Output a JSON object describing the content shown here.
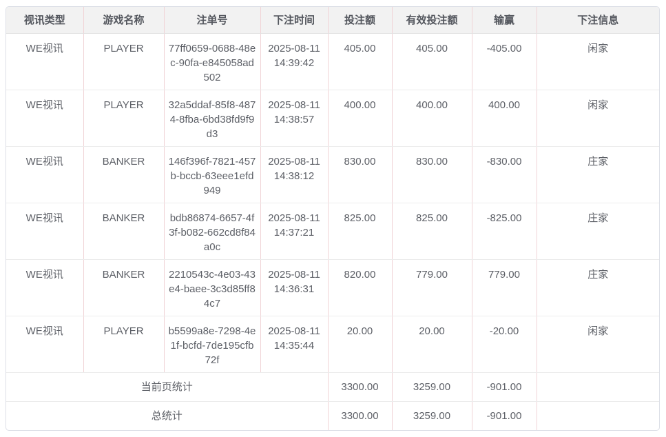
{
  "colors": {
    "header_bg": "#f2f2f2",
    "outer_border": "#dcdfe6",
    "vertical_divider": "#f0d3d6",
    "horizontal_divider": "#ececec",
    "text": "#5c5f66"
  },
  "table": {
    "columns": {
      "video_type": "视讯类型",
      "game_name": "游戏名称",
      "bet_id": "注单号",
      "bet_time": "下注时间",
      "bet_amount": "投注额",
      "valid_bet_amount": "有效投注额",
      "win_loss": "输赢",
      "bet_info": "下注信息"
    },
    "rows": [
      {
        "video_type": "WE视讯",
        "game_name": "PLAYER",
        "bet_id": "77ff0659-0688-48ec-90fa-e845058ad502",
        "bet_time": "2025-08-11 14:39:42",
        "bet_amount": "405.00",
        "valid_bet_amount": "405.00",
        "win_loss": "-405.00",
        "bet_info": "闲家"
      },
      {
        "video_type": "WE视讯",
        "game_name": "PLAYER",
        "bet_id": "32a5ddaf-85f8-4874-8fba-6bd38fd9f9d3",
        "bet_time": "2025-08-11 14:38:57",
        "bet_amount": "400.00",
        "valid_bet_amount": "400.00",
        "win_loss": "400.00",
        "bet_info": "闲家"
      },
      {
        "video_type": "WE视讯",
        "game_name": "BANKER",
        "bet_id": "146f396f-7821-457b-bccb-63eee1efd949",
        "bet_time": "2025-08-11 14:38:12",
        "bet_amount": "830.00",
        "valid_bet_amount": "830.00",
        "win_loss": "-830.00",
        "bet_info": "庄家"
      },
      {
        "video_type": "WE视讯",
        "game_name": "BANKER",
        "bet_id": "bdb86874-6657-4f3f-b082-662cd8f84a0c",
        "bet_time": "2025-08-11 14:37:21",
        "bet_amount": "825.00",
        "valid_bet_amount": "825.00",
        "win_loss": "-825.00",
        "bet_info": "庄家"
      },
      {
        "video_type": "WE视讯",
        "game_name": "BANKER",
        "bet_id": "2210543c-4e03-43e4-baee-3c3d85ff84c7",
        "bet_time": "2025-08-11 14:36:31",
        "bet_amount": "820.00",
        "valid_bet_amount": "779.00",
        "win_loss": "779.00",
        "bet_info": "庄家"
      },
      {
        "video_type": "WE视讯",
        "game_name": "PLAYER",
        "bet_id": "b5599a8e-7298-4e1f-bcfd-7de195cfb72f",
        "bet_time": "2025-08-11 14:35:44",
        "bet_amount": "20.00",
        "valid_bet_amount": "20.00",
        "win_loss": "-20.00",
        "bet_info": "闲家"
      }
    ],
    "page_summary": {
      "label": "当前页统计",
      "bet_amount": "3300.00",
      "valid_bet_amount": "3259.00",
      "win_loss": "-901.00",
      "bet_info": ""
    },
    "total_summary": {
      "label": "总统计",
      "bet_amount": "3300.00",
      "valid_bet_amount": "3259.00",
      "win_loss": "-901.00",
      "bet_info": ""
    }
  }
}
